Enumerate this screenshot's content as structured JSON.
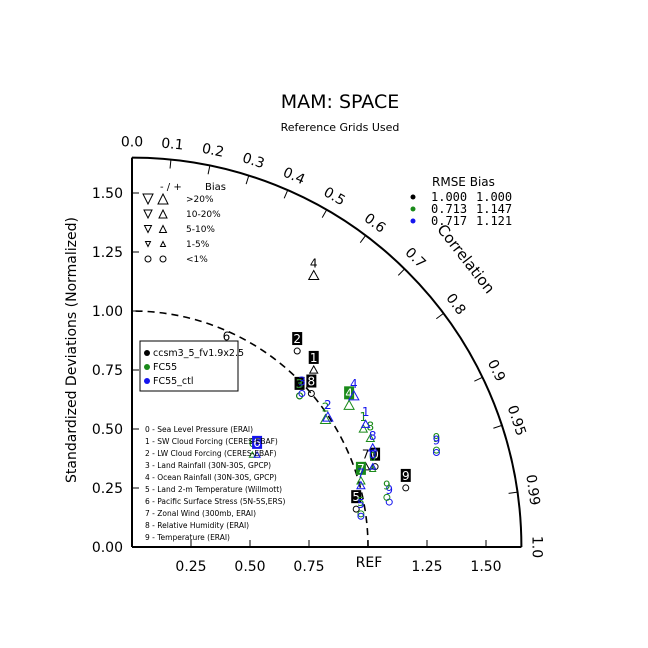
{
  "chart_data": {
    "type": "scatter",
    "title": "MAM: SPACE",
    "subtitle": "Reference Grids Used",
    "ylabel": "Standardized Deviations (Normalized)",
    "xlabel": "",
    "angular_label": "Correlation",
    "ref_label": "REF",
    "xlim": [
      0,
      1.65
    ],
    "ylim": [
      0,
      1.65
    ],
    "std_ticks": [
      {
        "v": 0.25,
        "label": "0.25"
      },
      {
        "v": 0.5,
        "label": "0.50"
      },
      {
        "v": 0.75,
        "label": "0.75"
      },
      {
        "v": 1.25,
        "label": "1.25"
      },
      {
        "v": 1.5,
        "label": "1.50"
      }
    ],
    "y_ticks": [
      {
        "v": 0.0,
        "label": "0.00"
      },
      {
        "v": 0.25,
        "label": "0.25"
      },
      {
        "v": 0.5,
        "label": "0.50"
      },
      {
        "v": 0.75,
        "label": "0.75"
      },
      {
        "v": 1.0,
        "label": "1.00"
      },
      {
        "v": 1.25,
        "label": "1.25"
      },
      {
        "v": 1.5,
        "label": "1.50"
      }
    ],
    "corr_ticks": [
      {
        "v": 0.0,
        "label": "0.0"
      },
      {
        "v": 0.1,
        "label": "0.1"
      },
      {
        "v": 0.2,
        "label": "0.2"
      },
      {
        "v": 0.3,
        "label": "0.3"
      },
      {
        "v": 0.4,
        "label": "0.4"
      },
      {
        "v": 0.5,
        "label": "0.5"
      },
      {
        "v": 0.6,
        "label": "0.6"
      },
      {
        "v": 0.7,
        "label": "0.7"
      },
      {
        "v": 0.8,
        "label": "0.8"
      },
      {
        "v": 0.9,
        "label": "0.9"
      },
      {
        "v": 0.95,
        "label": "0.95"
      },
      {
        "v": 0.99,
        "label": "0.99"
      },
      {
        "v": 1.0,
        "label": "1.0"
      }
    ],
    "bias_legend": {
      "header_signs": "- / +",
      "header_bias": "Bias",
      "rows": [
        {
          "label": ">20%",
          "sym": "tri-lg"
        },
        {
          "label": "10-20%",
          "sym": "tri-md"
        },
        {
          "label": "5-10%",
          "sym": "tri-sm"
        },
        {
          "label": "1-5%",
          "sym": "tri-xs"
        },
        {
          "label": "<1%",
          "sym": "circle"
        }
      ]
    },
    "stats_legend": {
      "header": "RMSE  Bias",
      "rows": [
        {
          "color": "#000000",
          "rmse": "1.000",
          "bias": "1.000"
        },
        {
          "color": "#1a8a1a",
          "rmse": "0.713",
          "bias": "1.147"
        },
        {
          "color": "#1515ee",
          "rmse": "0.717",
          "bias": "1.121"
        }
      ]
    },
    "series": [
      {
        "name": "ccsm3_5_fv1.9x2.5",
        "color": "#000000",
        "points": [
          {
            "id": "0",
            "x": 1.03,
            "y": 0.37,
            "sym": "circle",
            "boxed": true
          },
          {
            "id": "1",
            "x": 0.77,
            "y": 0.78,
            "sym": "tri-sm",
            "boxed": true
          },
          {
            "id": "2",
            "x": 0.7,
            "y": 0.86,
            "sym": "circle",
            "boxed": true
          },
          {
            "id": "3",
            "x": 0.71,
            "y": 0.67,
            "sym": "circle",
            "boxed": true
          },
          {
            "id": "4",
            "x": 0.77,
            "y": 1.18,
            "sym": "tri-md",
            "boxed": false
          },
          {
            "id": "5",
            "x": 0.95,
            "y": 0.19,
            "sym": "circle",
            "boxed": true
          },
          {
            "id": "6",
            "x": 0.4,
            "y": 0.87,
            "sym": "tri-sm",
            "boxed": false
          },
          {
            "id": "7",
            "x": 0.99,
            "y": 0.37,
            "sym": "tri-sm",
            "boxed": false
          },
          {
            "id": "8",
            "x": 0.76,
            "y": 0.68,
            "sym": "circle",
            "boxed": true
          },
          {
            "id": "9",
            "x": 1.16,
            "y": 0.28,
            "sym": "circle",
            "boxed": true
          }
        ]
      },
      {
        "name": "FC55",
        "color": "#1a8a1a",
        "points": [
          {
            "id": "0",
            "x": 1.02,
            "y": 0.36,
            "sym": "tri-xs",
            "boxed": false
          },
          {
            "id": "1",
            "x": 0.98,
            "y": 0.53,
            "sym": "tri-sm",
            "boxed": false
          },
          {
            "id": "2",
            "x": 0.82,
            "y": 0.57,
            "sym": "tri-md",
            "boxed": false
          },
          {
            "id": "3",
            "x": 0.71,
            "y": 0.67,
            "sym": "circle",
            "boxed": false
          },
          {
            "id": "4",
            "x": 0.92,
            "y": 0.63,
            "sym": "tri-md",
            "boxed": true
          },
          {
            "id": "5",
            "x": 0.97,
            "y": 0.17,
            "sym": "circle",
            "boxed": false
          },
          {
            "id": "6",
            "x": 0.51,
            "y": 0.42,
            "sym": "tri-xs",
            "boxed": false
          },
          {
            "id": "7",
            "x": 0.97,
            "y": 0.31,
            "sym": "tri-sm",
            "boxed": true
          },
          {
            "id": "8",
            "x": 1.01,
            "y": 0.49,
            "sym": "tri-sm",
            "boxed": false
          },
          {
            "id": "9",
            "x": 1.29,
            "y": 0.44,
            "sym": "circle",
            "boxed": false
          }
        ]
      },
      {
        "name": "FC55_ctl",
        "color": "#1515ee",
        "points": [
          {
            "id": "0",
            "x": 1.02,
            "y": 0.37,
            "sym": "tri-xs",
            "boxed": false
          },
          {
            "id": "1",
            "x": 0.99,
            "y": 0.55,
            "sym": "tri-sm",
            "boxed": false
          },
          {
            "id": "2",
            "x": 0.83,
            "y": 0.58,
            "sym": "tri-md",
            "boxed": false
          },
          {
            "id": "3",
            "x": 0.72,
            "y": 0.68,
            "sym": "circle",
            "boxed": false
          },
          {
            "id": "4",
            "x": 0.94,
            "y": 0.67,
            "sym": "tri-md",
            "boxed": false
          },
          {
            "id": "5",
            "x": 0.97,
            "y": 0.16,
            "sym": "circle",
            "boxed": false
          },
          {
            "id": "6",
            "x": 0.53,
            "y": 0.42,
            "sym": "tri-xs",
            "boxed": true
          },
          {
            "id": "7",
            "x": 0.97,
            "y": 0.29,
            "sym": "tri-sm",
            "boxed": false
          },
          {
            "id": "8",
            "x": 1.02,
            "y": 0.45,
            "sym": "tri-sm",
            "boxed": false
          },
          {
            "id": "9",
            "x": 1.29,
            "y": 0.43,
            "sym": "circle",
            "boxed": false
          }
        ]
      }
    ],
    "extra_points": [
      {
        "id": "9",
        "x": 1.09,
        "y": 0.22,
        "color": "#1515ee",
        "sym": "circle"
      },
      {
        "id": "9",
        "x": 1.08,
        "y": 0.24,
        "color": "#1a8a1a",
        "sym": "circle"
      }
    ],
    "variables": [
      "0 - Sea Level Pressure (ERAI)",
      "1 - SW Cloud Forcing (CERES-EBAF)",
      "2 - LW Cloud Forcing (CERES-EBAF)",
      "3 - Land Rainfall (30N-30S, GPCP)",
      "4 - Ocean Rainfall (30N-30S, GPCP)",
      "5 - Land 2-m Temperature (Willmott)",
      "6 - Pacific Surface Stress (5N-5S,ERS)",
      "7 - Zonal Wind (300mb, ERAI)",
      "8 - Relative Humidity (ERAI)",
      "9 - Temperature (ERAI)"
    ]
  }
}
